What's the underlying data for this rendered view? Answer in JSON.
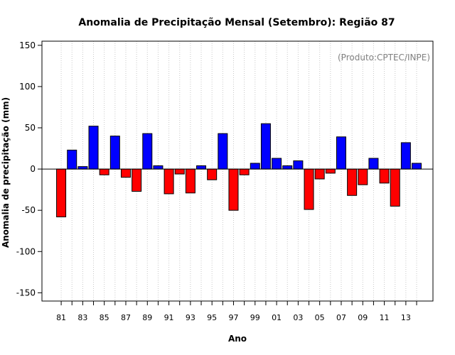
{
  "chart_data": {
    "type": "bar",
    "title": "Anomalia de Precipitação Mensal (Setembro): Região 87",
    "xlabel": "Ano",
    "ylabel": "Anomalia de precipitação (mm)",
    "annotation": "(Produto:CPTEC/INPE)",
    "ylim": [
      -160,
      155
    ],
    "yticks": [
      -150,
      -100,
      -50,
      0,
      50,
      100,
      150
    ],
    "tick_labels_x": [
      "81",
      "83",
      "85",
      "87",
      "89",
      "91",
      "93",
      "95",
      "97",
      "99",
      "01",
      "03",
      "05",
      "07",
      "09",
      "11",
      "13"
    ],
    "categories": [
      "1981",
      "1982",
      "1983",
      "1984",
      "1985",
      "1986",
      "1987",
      "1988",
      "1989",
      "1990",
      "1991",
      "1992",
      "1993",
      "1994",
      "1995",
      "1996",
      "1997",
      "1998",
      "1999",
      "2000",
      "2001",
      "2002",
      "2003",
      "2004",
      "2005",
      "2006",
      "2007",
      "2008",
      "2009",
      "2010",
      "2011",
      "2012",
      "2013",
      "2014"
    ],
    "values": [
      -58,
      23,
      3,
      52,
      -7,
      40,
      -10,
      -27,
      43,
      4,
      -30,
      -6,
      -29,
      4,
      -13,
      43,
      -50,
      -7,
      7,
      55,
      13,
      4,
      10,
      -49,
      -12,
      -5,
      39,
      -32,
      -19,
      13,
      -17,
      -45,
      32,
      7
    ],
    "positive_color": "#0000ff",
    "negative_color": "#ff0000",
    "grid": "vertical dotted"
  }
}
